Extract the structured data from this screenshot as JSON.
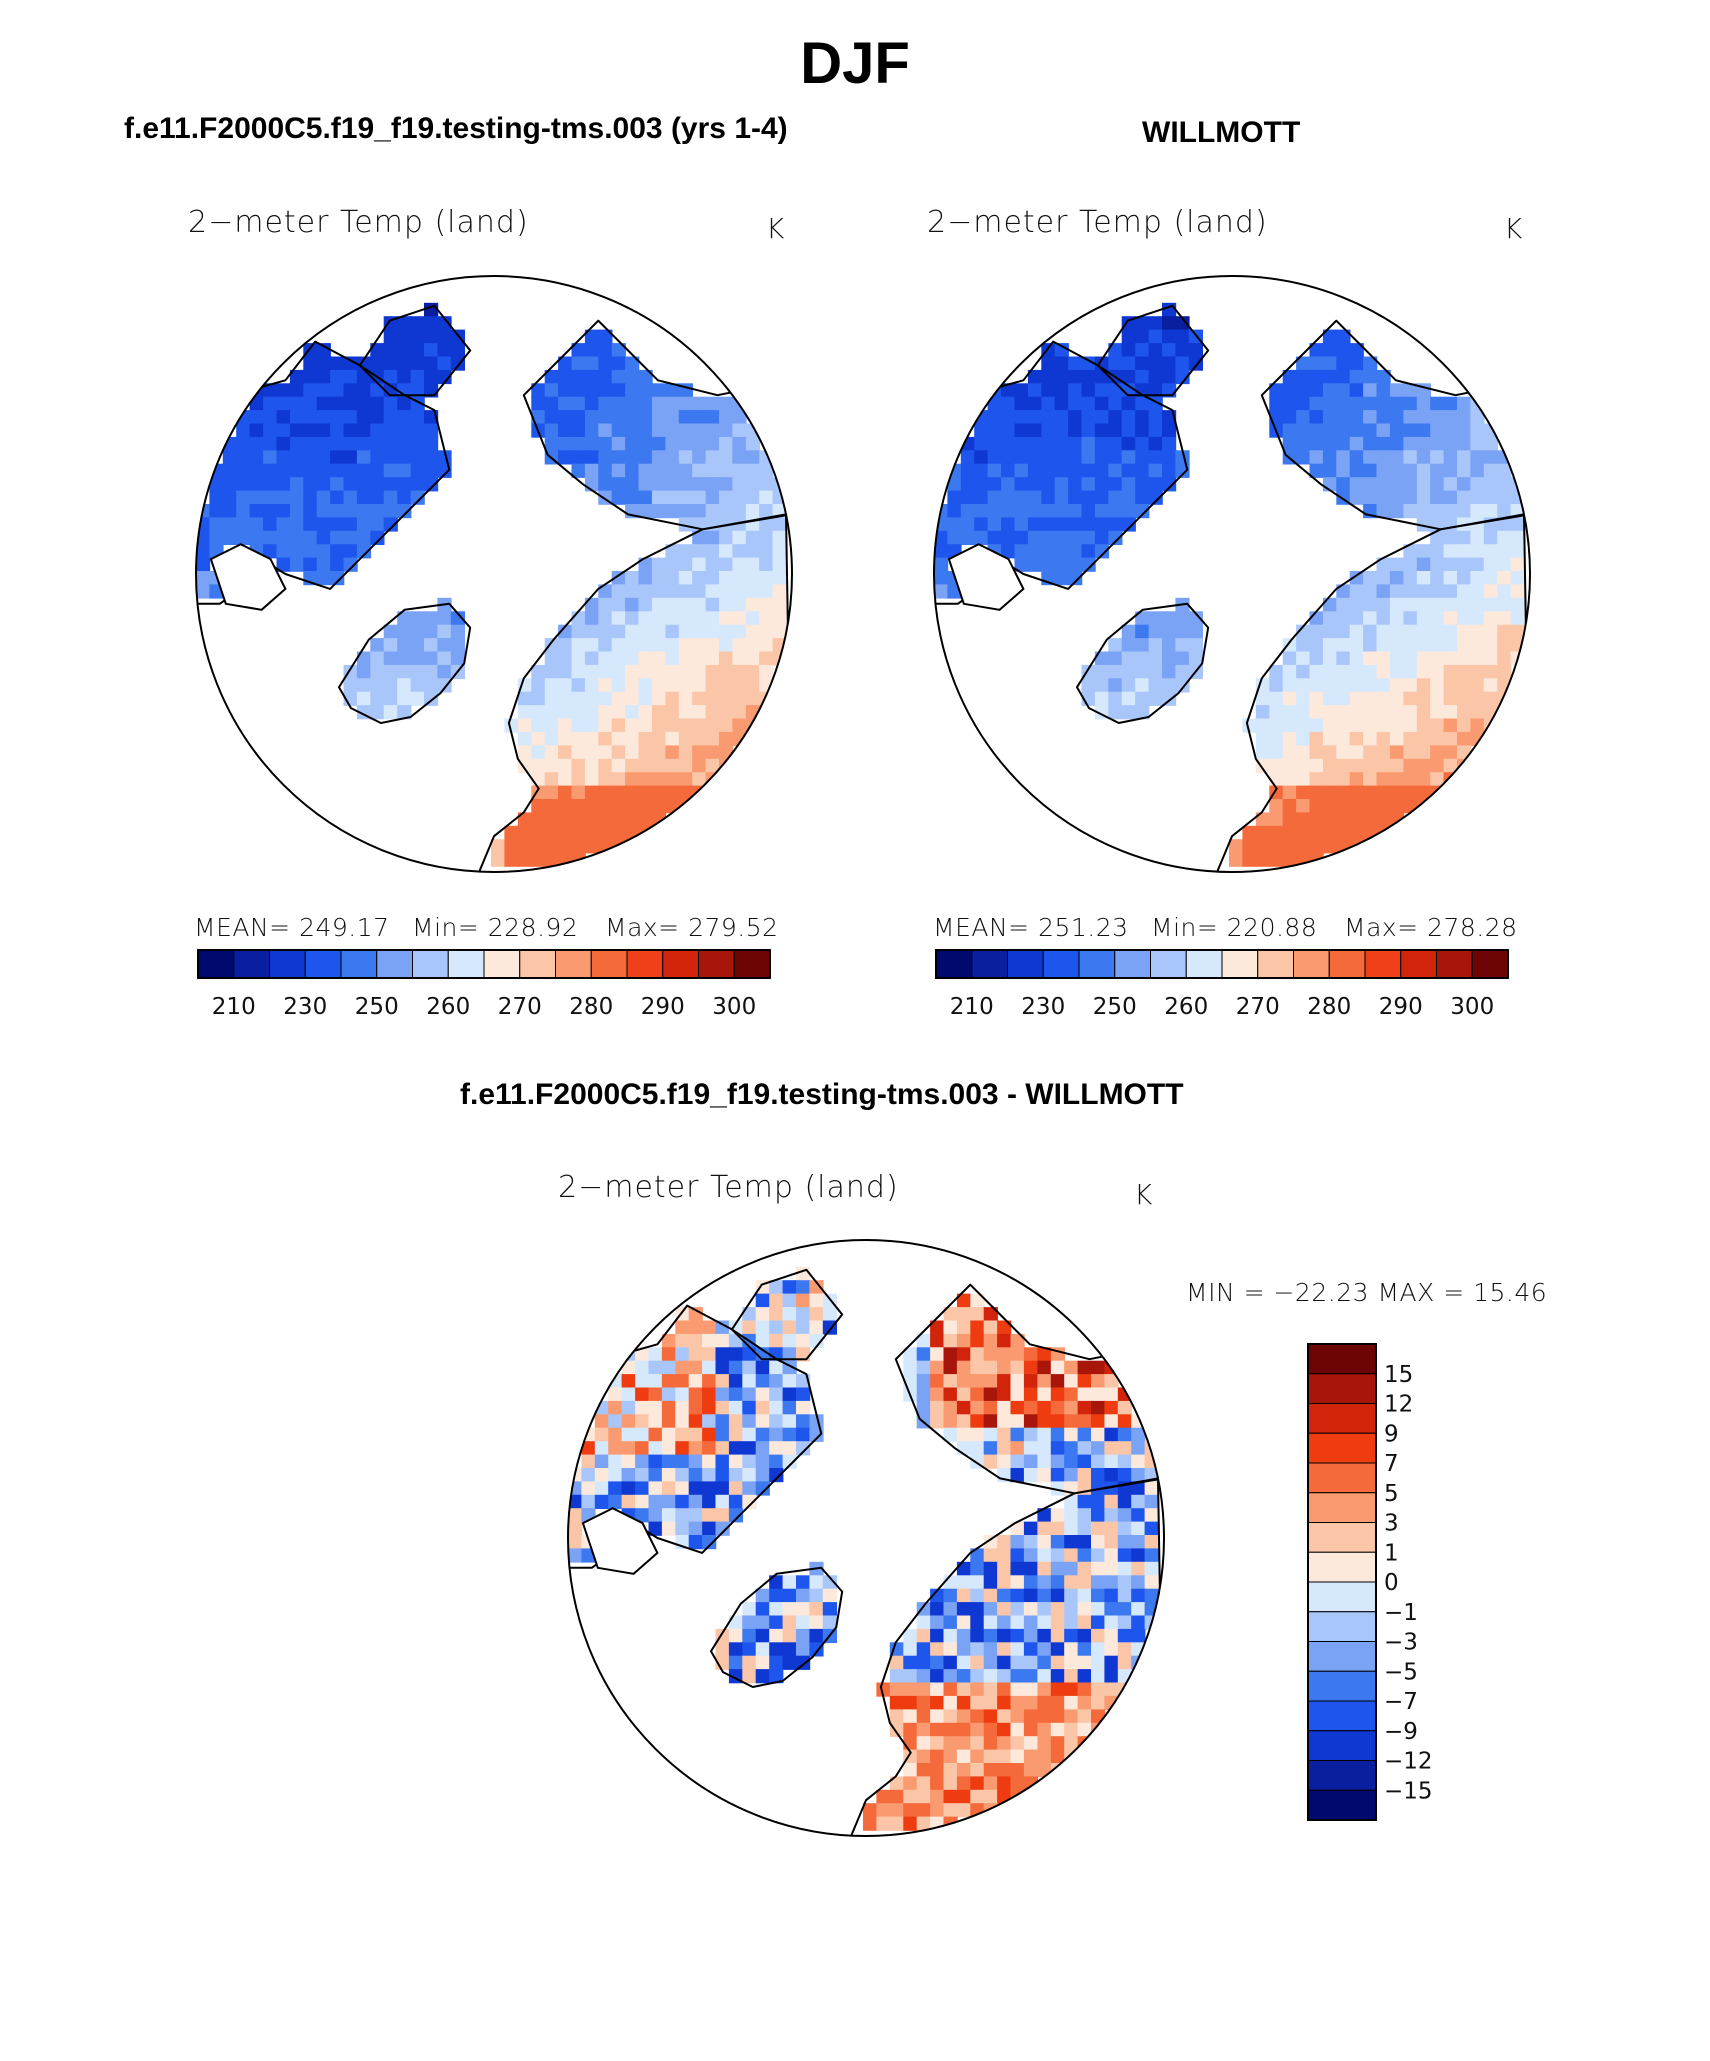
{
  "page": {
    "main_title": "DJF",
    "panel_titles": {
      "model": "f.e11.F2000C5.f19_f19.testing-tms.003 (yrs 1-4)",
      "obs": "WILLMOTT",
      "diff": "f.e11.F2000C5.f19_f19.testing-tms.003 - WILLMOTT"
    }
  },
  "chart_data": [
    {
      "type": "heatmap",
      "projection": "north-polar-stereographic",
      "title": "f.e11.F2000C5.f19_f19.testing-tms.003 (yrs 1-4)",
      "variable_label": "2−meter Temp (land)",
      "units": "K",
      "mean_label": "MEAN= 249.17",
      "min_label": "Min= 228.92",
      "max_label": "Max= 279.52",
      "mean": 249.17,
      "min": 228.92,
      "max": 279.52,
      "colorbar": {
        "orientation": "horizontal",
        "levels": [
          210,
          220,
          230,
          240,
          250,
          255,
          260,
          265,
          270,
          275,
          280,
          285,
          290,
          295,
          300
        ],
        "tick_labels": [
          "210",
          "230",
          "250",
          "260",
          "270",
          "280",
          "290",
          "300"
        ]
      }
    },
    {
      "type": "heatmap",
      "projection": "north-polar-stereographic",
      "title": "WILLMOTT",
      "variable_label": "2−meter Temp (land)",
      "units": "K",
      "mean_label": "MEAN= 251.23",
      "min_label": "Min= 220.88",
      "max_label": "Max= 278.28",
      "mean": 251.23,
      "min": 220.88,
      "max": 278.28,
      "colorbar": {
        "orientation": "horizontal",
        "levels": [
          210,
          220,
          230,
          240,
          250,
          255,
          260,
          265,
          270,
          275,
          280,
          285,
          290,
          295,
          300
        ],
        "tick_labels": [
          "210",
          "230",
          "250",
          "260",
          "270",
          "280",
          "290",
          "300"
        ]
      }
    },
    {
      "type": "heatmap",
      "projection": "north-polar-stereographic",
      "title": "f.e11.F2000C5.f19_f19.testing-tms.003 - WILLMOTT",
      "variable_label": "2−meter Temp (land)",
      "units": "K",
      "minmax_label": "MIN = −22.23 MAX =   15.46",
      "min": -22.23,
      "max": 15.46,
      "colorbar": {
        "orientation": "vertical",
        "levels": [
          15,
          12,
          9,
          7,
          5,
          3,
          1,
          0,
          -1,
          -3,
          -5,
          -7,
          -9,
          -12,
          -15
        ],
        "tick_labels": [
          "15",
          "12",
          "9",
          "7",
          "5",
          "3",
          "1",
          "0",
          "−1",
          "−3",
          "−5",
          "−7",
          "−9",
          "−12",
          "−15"
        ]
      }
    }
  ],
  "colors": {
    "abs_palette": [
      "#000a6e",
      "#0a1ea0",
      "#0f37d2",
      "#1e55ec",
      "#3c78f0",
      "#7aa2f5",
      "#a9c6fa",
      "#d6e8fc",
      "#fde9dc",
      "#fbc6a8",
      "#f99a70",
      "#f56a3a",
      "#f0401a",
      "#d2240a",
      "#a8150a",
      "#6e0505"
    ],
    "diff_palette": [
      "#6e0505",
      "#a8150a",
      "#d2240a",
      "#ee3c10",
      "#f56a3a",
      "#f99a70",
      "#fbc6a8",
      "#fde9dc",
      "#d6e8fc",
      "#a9c6fa",
      "#7aa2f5",
      "#3c78f0",
      "#1e55ec",
      "#0f37d2",
      "#0a1ea0",
      "#000a6e"
    ]
  }
}
